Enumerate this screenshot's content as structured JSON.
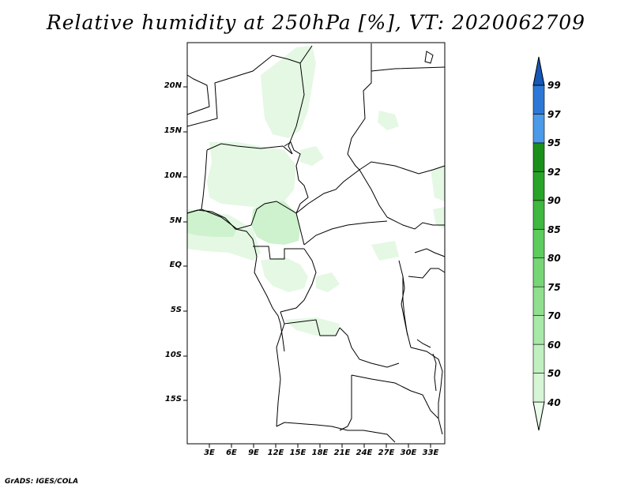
{
  "title": "Relative humidity at 250hPa [%], VT: 2020062709",
  "credit": "GrADS: IGES/COLA",
  "lat_labels": [
    "20N",
    "15N",
    "10N",
    "5N",
    "EQ",
    "5S",
    "10S",
    "15S"
  ],
  "lon_labels": [
    "3E",
    "6E",
    "9E",
    "12E",
    "15E",
    "18E",
    "21E",
    "24E",
    "27E",
    "30E",
    "33E"
  ],
  "colorbar": {
    "levels": [
      "40",
      "50",
      "60",
      "70",
      "75",
      "80",
      "85",
      "90",
      "92",
      "95",
      "97",
      "99"
    ],
    "colors": [
      "#eafbea",
      "#d5f5d5",
      "#c0f0c0",
      "#a8e8a8",
      "#8fdf8f",
      "#76d676",
      "#5ccc5c",
      "#3eb83e",
      "#28a428",
      "#1a8f1a",
      "#4a9ae8",
      "#2c78d6",
      "#1458b8"
    ]
  },
  "map_colors": {
    "light": "#e4f8e4",
    "mid": "#cdf2cd",
    "dark": "#b4eab4",
    "border": "#000000"
  }
}
